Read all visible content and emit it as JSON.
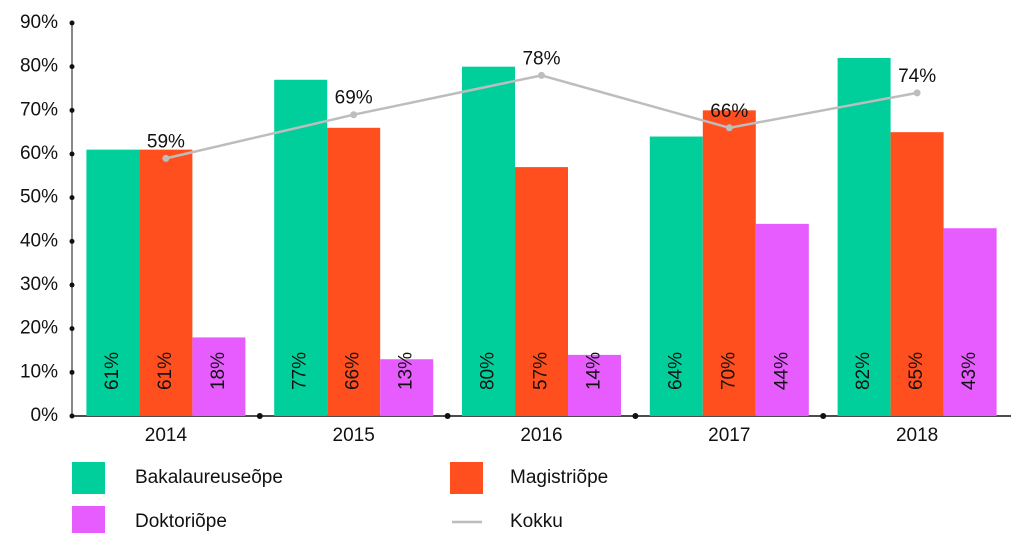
{
  "chart_data": {
    "type": "bar",
    "categories": [
      "2014",
      "2015",
      "2016",
      "2017",
      "2018"
    ],
    "series": [
      {
        "name": "Bakalaureuseõpe",
        "color": "#00cf9b",
        "values": [
          61,
          77,
          80,
          64,
          82
        ],
        "value_labels": [
          "61%",
          "77%",
          "80%",
          "64%",
          "82%"
        ]
      },
      {
        "name": "Magistriõpe",
        "color": "#ff4f1f",
        "values": [
          61,
          66,
          57,
          70,
          65
        ],
        "value_labels": [
          "61%",
          "66%",
          "57%",
          "70%",
          "65%"
        ]
      },
      {
        "name": "Doktoriõpe",
        "color": "#e65cff",
        "values": [
          18,
          13,
          14,
          44,
          43
        ],
        "value_labels": [
          "18%",
          "13%",
          "14%",
          "44%",
          "43%"
        ]
      },
      {
        "name": "Kokku",
        "type": "line",
        "color": "#bdbdbd",
        "values": [
          59,
          69,
          78,
          66,
          74
        ],
        "value_labels": [
          "59%",
          "69%",
          "78%",
          "66%",
          "74%"
        ]
      }
    ],
    "ylim": [
      0,
      90
    ],
    "yticks": [
      {
        "value": 0,
        "label": "0%"
      },
      {
        "value": 10,
        "label": "10%"
      },
      {
        "value": 20,
        "label": "20%"
      },
      {
        "value": 30,
        "label": "30%"
      },
      {
        "value": 40,
        "label": "40%"
      },
      {
        "value": 50,
        "label": "50%"
      },
      {
        "value": 60,
        "label": "60%"
      },
      {
        "value": 70,
        "label": "70%"
      },
      {
        "value": 80,
        "label": "80%"
      },
      {
        "value": 90,
        "label": "90%"
      }
    ],
    "grid": false
  }
}
